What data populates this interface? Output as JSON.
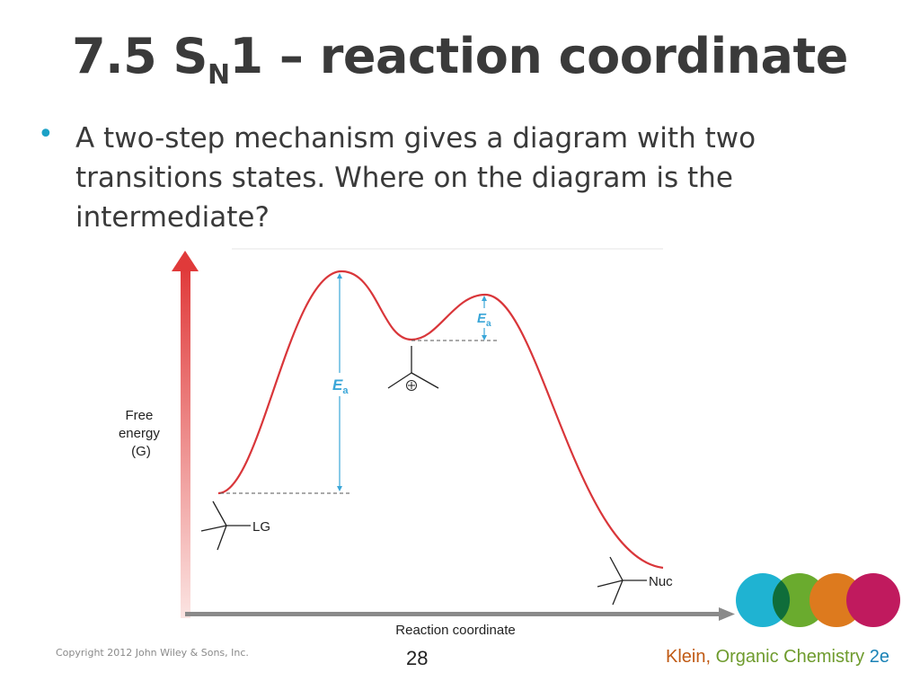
{
  "slide": {
    "title_main": "7.5 S",
    "title_sub": "N",
    "title_rest": "1 – reaction coordinate",
    "bullet": "A two-step mechanism gives a diagram with two transitions states.  Where on the diagram is the intermediate?"
  },
  "diagram": {
    "y_axis_label": [
      "Free",
      "energy",
      "(G)"
    ],
    "x_axis_label": "Reaction coordinate",
    "ea_label_large": "E",
    "ea_label_large_sub": "a",
    "ea_label_small": "E",
    "ea_label_small_sub": "a",
    "reactant_group": "LG",
    "product_group": "Nuc",
    "carbocation_charge": "⊕",
    "colors": {
      "curve": "#d9363a",
      "axis_arrow": "#e03a3a",
      "x_axis": "#8a8a8a",
      "ea_arrow": "#3aa6d8",
      "dashed": "#555555"
    }
  },
  "logo": {
    "colors": [
      "#1fb3d2",
      "#6aab2e",
      "#dd7a1e",
      "#c01a5e"
    ]
  },
  "footer": {
    "copyright": "Copyright 2012 John Wiley & Sons, Inc.",
    "page_number": "28",
    "book_author": "Klein,",
    "book_title": "Organic Chemistry",
    "book_edition": "2e"
  }
}
